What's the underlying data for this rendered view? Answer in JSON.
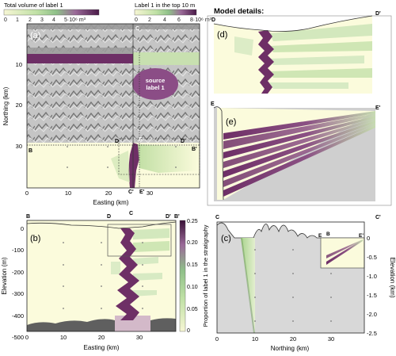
{
  "colors": {
    "sandbox_bg": "#fbfbdc",
    "green_light": "#cfe6b4",
    "green": "#a9d38d",
    "purple": "#6e2f66",
    "purple_light": "#a86a9c",
    "bedrock": "#5f5f5f",
    "dem_gray": "#8a8a8a",
    "cross_bg": "#d8d8d8"
  },
  "colorbar_volume": {
    "title": "Total volume of label 1",
    "ticks": [
      "0",
      "1",
      "2",
      "3",
      "4",
      "5·10⁶ m³"
    ]
  },
  "colorbar_top": {
    "title": "Label 1 in the top 10 m",
    "ticks": [
      "0",
      "2",
      "4",
      "6",
      "8·10⁶ m³"
    ]
  },
  "panel_a": {
    "label": "(a)",
    "ylabel": "Northing (km)",
    "xlabel": "Easting (km)",
    "yticks": [
      "10",
      "20",
      "30"
    ],
    "xticks": [
      "0",
      "10",
      "20",
      "30"
    ],
    "source_text": [
      "source",
      "label 1"
    ],
    "points": {
      "B": "B",
      "D": "D",
      "D_prime": "D'",
      "B_prime": "B'",
      "C": "C",
      "C_prime": "C'",
      "E": "E",
      "E_prime": "E'"
    }
  },
  "panel_b": {
    "label": "(b)",
    "ylabel": "Elevation (m)",
    "xlabel": "Easting (km)",
    "yticks": [
      "0",
      "-100",
      "-200",
      "-300",
      "-400",
      "-500"
    ],
    "xticks": [
      "0",
      "10",
      "20",
      "30"
    ],
    "points": {
      "B": "B",
      "D": "D",
      "C": "C",
      "D_prime": "D'",
      "B_prime": "B'"
    }
  },
  "colorbar_prop": {
    "title": "Proportion of label 1 in the stratigraphy",
    "ticks": [
      "0",
      "0.05",
      "0.10",
      "0.15",
      "0.20",
      "0.25"
    ]
  },
  "model_details": {
    "title": "Model details:",
    "panel_d": {
      "label": "(d)",
      "left": "D",
      "right": "D'"
    },
    "panel_e": {
      "label": "(e)",
      "left": "E",
      "right": "E'"
    }
  },
  "panel_c": {
    "label": "(c)",
    "xlabel": "Northing (km)",
    "ylabel": "Elevation (km)",
    "yticks": [
      "0",
      "-0.5",
      "-1.0",
      "-1.5",
      "-2.0",
      "-2.5"
    ],
    "xticks": [
      "0",
      "10",
      "20",
      "30"
    ],
    "points": {
      "C": "C",
      "C_prime": "C'",
      "E": "E",
      "B": "B",
      "E_prime": "E'"
    }
  }
}
